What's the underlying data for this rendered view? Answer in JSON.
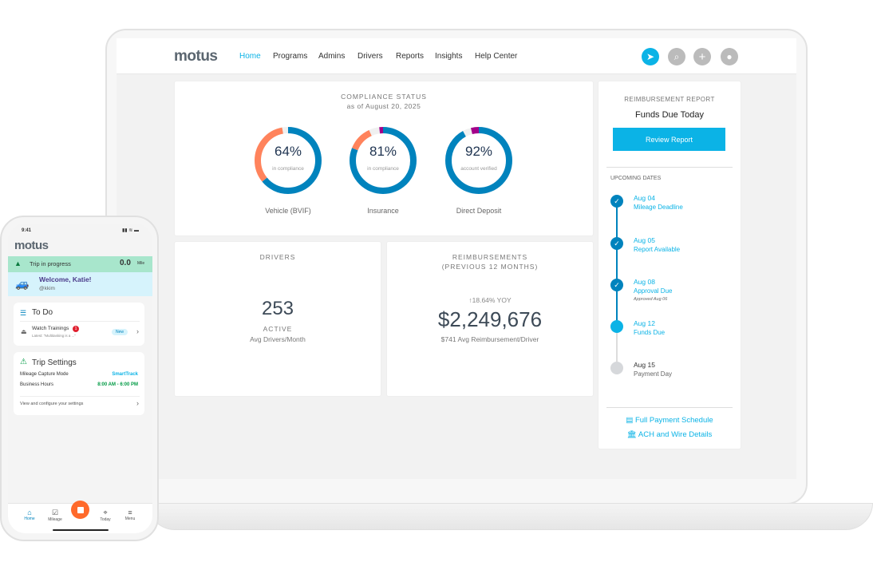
{
  "laptop": {
    "nav": {
      "logo": "motus",
      "links": [
        "Home",
        "Programs",
        "Admins",
        "Drivers",
        "Reports",
        "Insights",
        "Help Center"
      ],
      "active": "Home",
      "icons": [
        "send-icon",
        "search-icon",
        "plus-icon",
        "avatar-icon"
      ]
    },
    "compliance": {
      "title": "COMPLIANCE STATUS",
      "subtitle": "as of August 20, 2025",
      "items": [
        {
          "value": "64%",
          "caption": "in compliance",
          "label": "Vehicle (BVIF)",
          "segments": [
            {
              "color": "#0083bd",
              "frac": 0.64
            },
            {
              "color": "#ff835c",
              "frac": 0.33
            },
            {
              "color": "#f0f0f0",
              "frac": 0.03
            }
          ]
        },
        {
          "value": "81%",
          "caption": "in compliance",
          "label": "Insurance",
          "segments": [
            {
              "color": "#0083bd",
              "frac": 0.81
            },
            {
              "color": "#ff835c",
              "frac": 0.12
            },
            {
              "color": "#f0f0f0",
              "frac": 0.05
            },
            {
              "color": "#a3008a",
              "frac": 0.02
            }
          ]
        },
        {
          "value": "92%",
          "caption": "account verified",
          "label": "Direct Deposit",
          "segments": [
            {
              "color": "#0083bd",
              "frac": 0.92
            },
            {
              "color": "#f0f0f0",
              "frac": 0.04
            },
            {
              "color": "#a3008a",
              "frac": 0.04
            }
          ]
        }
      ]
    },
    "drivers": {
      "title": "DRIVERS",
      "value": "253",
      "status": "ACTIVE",
      "caption": "Avg Drivers/Month"
    },
    "reimbursements": {
      "title": "REIMBURSEMENTS",
      "subtitle": "(PREVIOUS 12 MONTHS)",
      "yoy": "↑18.64% YOY",
      "value": "$2,249,676",
      "caption": "$741 Avg Reimbursement/Driver"
    },
    "report": {
      "title": "REIMBURSEMENT REPORT",
      "status": "Funds Due Today",
      "button": "Review Report",
      "upcoming_title": "UPCOMING DATES",
      "dates": [
        {
          "date": "Aug 04",
          "label": "Mileage Deadline",
          "state": "done"
        },
        {
          "date": "Aug 05",
          "label": "Report Available",
          "state": "done"
        },
        {
          "date": "Aug 08",
          "label": "Approval Due",
          "note": "Approved Aug 06",
          "state": "done"
        },
        {
          "date": "Aug 12",
          "label": "Funds Due",
          "state": "current"
        },
        {
          "date": "Aug 15",
          "label": "Payment Day",
          "state": "future"
        }
      ],
      "links": [
        "Full Payment Schedule",
        "ACH and Wire Details"
      ]
    }
  },
  "phone": {
    "time": "9:41",
    "logo": "motus",
    "trip": {
      "label": "Trip in progress",
      "value": "0.0",
      "unit": "Mile"
    },
    "welcome": {
      "title": "Welcome, Katie!",
      "handle": "@kkim"
    },
    "todo": {
      "title": "To Do",
      "item": "Watch Trainings",
      "badge": "1",
      "latest": "Latest: \"Multitasking is a ...\"",
      "tag": "New"
    },
    "settings": {
      "title": "Trip Settings",
      "rows": [
        {
          "label": "Mileage Capture Mode",
          "value": "SmartTrack"
        },
        {
          "label": "Business Hours",
          "value": "8:00 AM - 6:00 PM"
        }
      ],
      "link": "View and configure your settings"
    },
    "tabs": [
      "Home",
      "Mileage",
      "",
      "Today",
      "Menu"
    ]
  },
  "colors": {
    "accent": "#0bb3e6",
    "blue": "#0083bd",
    "orange": "#ff6a2b",
    "green": "#009a44"
  }
}
